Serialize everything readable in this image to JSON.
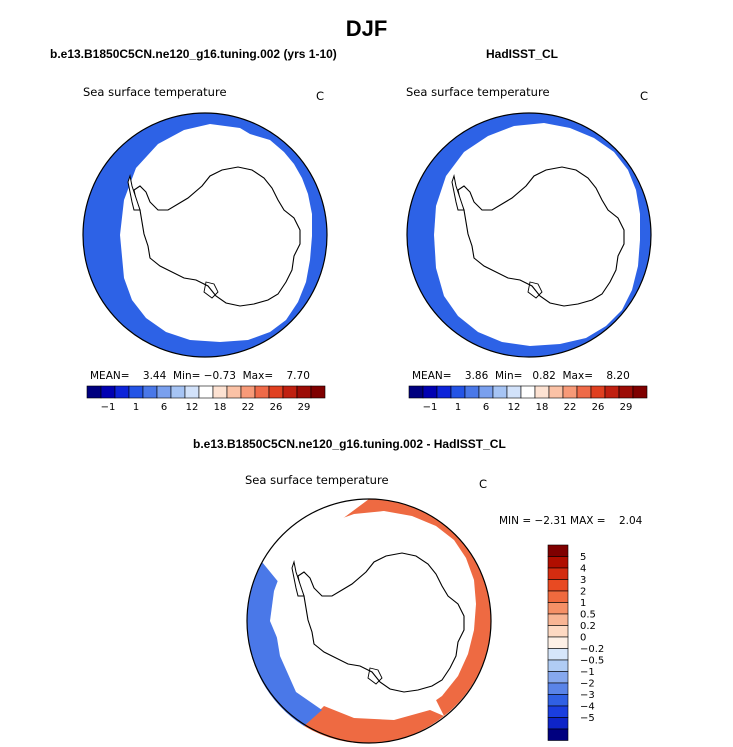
{
  "main_title": "DJF",
  "colors": {
    "land": "#ffffff",
    "coast": "#000000",
    "ice": "#ffffff",
    "sst_ocean": "#2d62e6",
    "diff_positive": "#ee6a42",
    "diff_negative": "#4a78e8"
  },
  "panels": [
    {
      "case_title": "b.e13.B1850C5CN.ne120_g16.tuning.002 (yrs 1-10)",
      "field_label": "Sea surface temperature",
      "units": "C",
      "mean_label": "MEAN=",
      "mean_value": "3.44",
      "min_label": "Min=",
      "min_value": "−0.73",
      "max_label": "Max=",
      "max_value": "7.70"
    },
    {
      "case_title": "HadISST_CL",
      "field_label": "Sea surface temperature",
      "units": "C",
      "mean_label": "MEAN=",
      "mean_value": "3.86",
      "min_label": "Min=",
      "min_value": "0.82",
      "max_label": "Max=",
      "max_value": "8.20"
    }
  ],
  "diff_panel": {
    "case_title": "b.e13.B1850C5CN.ne120_g16.tuning.002 - HadISST_CL",
    "field_label": "Sea surface temperature",
    "units": "C",
    "min_label": "MIN =",
    "min_value": "−2.31",
    "max_label": "MAX =",
    "max_value": "2.04"
  },
  "chart_data": [
    {
      "type": "heatmap",
      "title": "b.e13.B1850C5CN.ne120_g16.tuning.002 (yrs 1-10)",
      "field": "Sea surface temperature",
      "units": "C",
      "projection": "south polar stereographic",
      "stats": {
        "mean": 3.44,
        "min": -0.73,
        "max": 7.7
      },
      "colorbar": {
        "orientation": "horizontal",
        "labels": [
          "−1",
          "1",
          "6",
          "12",
          "18",
          "22",
          "26",
          "29"
        ],
        "colors": [
          "#00007f",
          "#0000b2",
          "#0d24d9",
          "#2454e6",
          "#4a78e8",
          "#7aa0ee",
          "#a6c4f4",
          "#d2e2fa",
          "#ffffff",
          "#fde2d2",
          "#fbc2a6",
          "#f79a78",
          "#ef6a48",
          "#e04020",
          "#c02010",
          "#9c0c06",
          "#7f0000"
        ]
      }
    },
    {
      "type": "heatmap",
      "title": "HadISST_CL",
      "field": "Sea surface temperature",
      "units": "C",
      "projection": "south polar stereographic",
      "stats": {
        "mean": 3.86,
        "min": 0.82,
        "max": 8.2
      },
      "colorbar": {
        "orientation": "horizontal",
        "labels": [
          "−1",
          "1",
          "6",
          "12",
          "18",
          "22",
          "26",
          "29"
        ],
        "colors": [
          "#00007f",
          "#0000b2",
          "#0d24d9",
          "#2454e6",
          "#4a78e8",
          "#7aa0ee",
          "#a6c4f4",
          "#d2e2fa",
          "#ffffff",
          "#fde2d2",
          "#fbc2a6",
          "#f79a78",
          "#ef6a48",
          "#e04020",
          "#c02010",
          "#9c0c06",
          "#7f0000"
        ]
      }
    },
    {
      "type": "heatmap",
      "title": "b.e13.B1850C5CN.ne120_g16.tuning.002 - HadISST_CL",
      "field": "Sea surface temperature",
      "units": "C",
      "projection": "south polar stereographic",
      "stats": {
        "min": -2.31,
        "max": 2.04
      },
      "colorbar": {
        "orientation": "vertical",
        "labels": [
          "5",
          "4",
          "3",
          "2",
          "1",
          "0.5",
          "0.2",
          "0",
          "−0.2",
          "−0.5",
          "−1",
          "−2",
          "−3",
          "−4",
          "−5"
        ],
        "colors": [
          "#7f0000",
          "#b00e00",
          "#d42c10",
          "#e84a22",
          "#f06a3e",
          "#f59066",
          "#f8b594",
          "#fdd9c2",
          "#fdf0e6",
          "#d6e6fa",
          "#b0ccf4",
          "#86a8ee",
          "#5a84e8",
          "#3060e4",
          "#1a3ee0",
          "#0e24c8",
          "#00007f"
        ]
      }
    }
  ]
}
